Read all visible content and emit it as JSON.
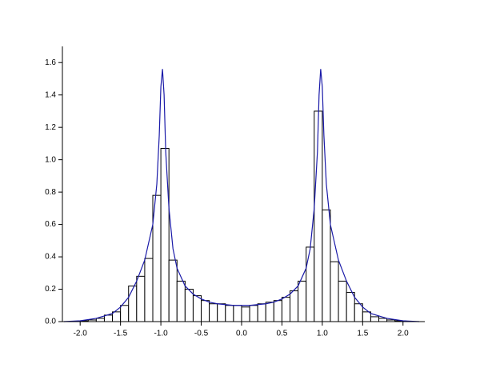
{
  "chart_data": {
    "type": "histogram",
    "bins": [
      -2.1,
      -2.0,
      -1.9,
      -1.8,
      -1.7,
      -1.6,
      -1.5,
      -1.4,
      -1.3,
      -1.2,
      -1.1,
      -1.0,
      -0.9,
      -0.8,
      -0.7,
      -0.6,
      -0.5,
      -0.4,
      -0.3,
      -0.2,
      -0.1,
      0,
      0.1,
      0.2,
      0.3,
      0.4,
      0.5,
      0.6,
      0.7,
      0.8,
      0.9,
      1.0,
      1.1,
      1.2,
      1.3,
      1.4,
      1.5,
      1.6,
      1.7,
      1.8,
      1.9,
      2.0,
      2.1
    ],
    "values": [
      0.002,
      0.005,
      0.01,
      0.02,
      0.04,
      0.06,
      0.1,
      0.22,
      0.28,
      0.39,
      0.78,
      1.07,
      0.38,
      0.25,
      0.2,
      0.16,
      0.13,
      0.11,
      0.11,
      0.1,
      0.1,
      0.09,
      0.1,
      0.11,
      0.12,
      0.13,
      0.15,
      0.19,
      0.25,
      0.46,
      1.3,
      0.69,
      0.37,
      0.25,
      0.18,
      0.11,
      0.06,
      0.03,
      0.02,
      0.01,
      0.005,
      0.002
    ],
    "color": "#000000",
    "fill": "#ffffff",
    "overlay": {
      "type": "line",
      "color": "#1a1aa8",
      "x": [
        -2.2,
        -2.0,
        -1.8,
        -1.6,
        -1.5,
        -1.4,
        -1.3,
        -1.2,
        -1.1,
        -1.05,
        -1.02,
        -1.0,
        -0.98,
        -0.96,
        -0.94,
        -0.9,
        -0.85,
        -0.8,
        -0.7,
        -0.6,
        -0.5,
        -0.4,
        -0.3,
        -0.2,
        -0.1,
        0,
        0.1,
        0.2,
        0.3,
        0.4,
        0.5,
        0.6,
        0.7,
        0.8,
        0.85,
        0.9,
        0.94,
        0.96,
        0.98,
        1.0,
        1.02,
        1.05,
        1.1,
        1.2,
        1.3,
        1.4,
        1.5,
        1.6,
        1.8,
        2.0,
        2.2
      ],
      "y": [
        0,
        0.005,
        0.02,
        0.05,
        0.09,
        0.15,
        0.25,
        0.38,
        0.6,
        0.85,
        1.15,
        1.45,
        1.56,
        1.4,
        1.05,
        0.7,
        0.45,
        0.33,
        0.22,
        0.17,
        0.14,
        0.12,
        0.11,
        0.105,
        0.1,
        0.1,
        0.1,
        0.105,
        0.11,
        0.12,
        0.14,
        0.17,
        0.22,
        0.33,
        0.45,
        0.7,
        1.05,
        1.4,
        1.56,
        1.45,
        1.15,
        0.85,
        0.6,
        0.38,
        0.25,
        0.15,
        0.09,
        0.05,
        0.02,
        0.005,
        0
      ]
    },
    "xlim": [
      -2.22,
      2.27
    ],
    "ylim": [
      0,
      1.7
    ],
    "xticks": [
      {
        "value": -2.0,
        "label": "-2.0"
      },
      -1.5,
      {
        "value": -1.0,
        "label": "-1.0"
      },
      -0.5,
      {
        "value": 0,
        "label": "0.0"
      },
      0.5,
      {
        "value": 1.0,
        "label": "1.0"
      },
      1.5,
      {
        "value": 2.0,
        "label": "2.0"
      }
    ],
    "yticks": [
      {
        "value": 0,
        "label": "0.0"
      },
      0.2,
      0.4,
      0.6,
      0.8,
      {
        "value": 1.0,
        "label": "1.0"
      },
      1.2,
      1.4,
      1.6
    ],
    "grid": false
  }
}
